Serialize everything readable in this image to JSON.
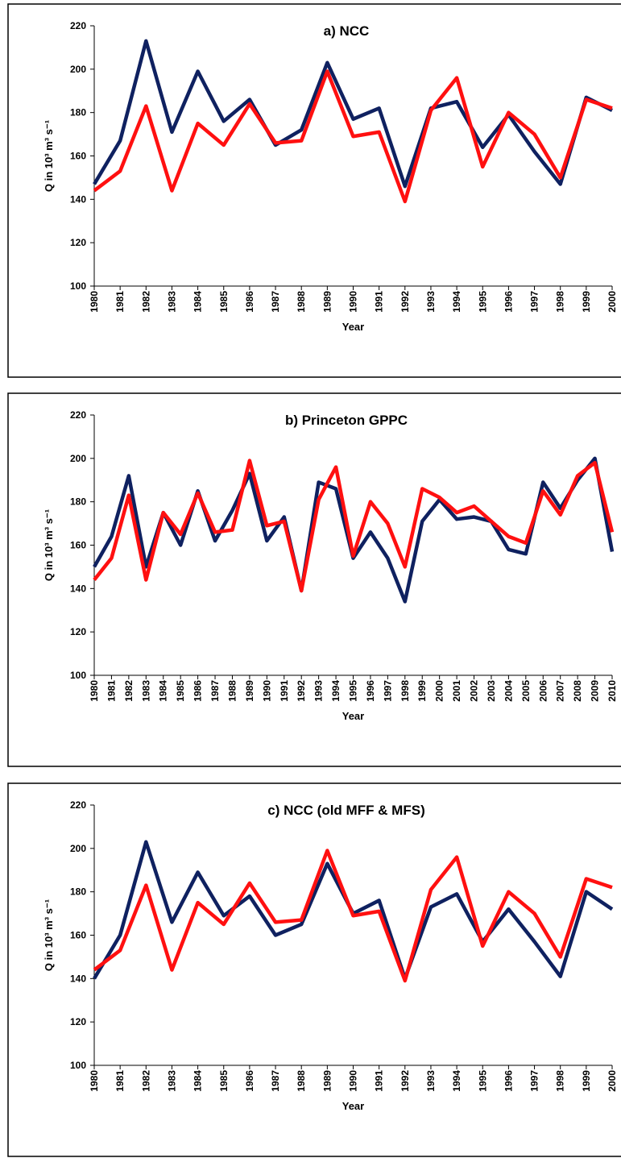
{
  "chart_data": [
    {
      "type": "line",
      "title": "a) NCC",
      "ylabel": "Q in 10³ m³ s⁻¹",
      "xlabel": "Year",
      "x": [
        1980,
        1981,
        1982,
        1983,
        1984,
        1985,
        1986,
        1987,
        1988,
        1989,
        1990,
        1991,
        1992,
        1993,
        1994,
        1995,
        1996,
        1997,
        1998,
        1999,
        2000
      ],
      "xlim": [
        1980,
        2000
      ],
      "xticks": [
        1980,
        1981,
        1982,
        1983,
        1984,
        1985,
        1986,
        1987,
        1988,
        1989,
        1990,
        1991,
        1992,
        1993,
        1994,
        1995,
        1996,
        1997,
        1998,
        1999,
        2000
      ],
      "ylim": [
        100,
        220
      ],
      "yticks": [
        100,
        120,
        140,
        160,
        180,
        200,
        220
      ],
      "series": [
        {
          "color": "#0f2160",
          "values": [
            147,
            167,
            213,
            171,
            199,
            176,
            186,
            165,
            172,
            203,
            177,
            182,
            146,
            182,
            185,
            164,
            179,
            162,
            147,
            187,
            181
          ]
        },
        {
          "color": "#ff1010",
          "values": [
            144,
            153,
            183,
            144,
            175,
            165,
            184,
            166,
            167,
            199,
            169,
            171,
            139,
            181,
            196,
            155,
            180,
            170,
            150,
            186,
            182
          ]
        }
      ]
    },
    {
      "type": "line",
      "title": "b) Princeton GPPC",
      "ylabel": "Q in 10³ m³ s⁻¹",
      "xlabel": "Year",
      "x": [
        1980,
        1981,
        1982,
        1983,
        1984,
        1985,
        1986,
        1987,
        1988,
        1989,
        1990,
        1991,
        1992,
        1993,
        1994,
        1995,
        1996,
        1997,
        1998,
        1999,
        2000,
        2001,
        2002,
        2003,
        2004,
        2005,
        2006,
        2007,
        2008,
        2009,
        2010
      ],
      "xlim": [
        1980,
        2010
      ],
      "xticks": [
        1980,
        1981,
        1982,
        1983,
        1984,
        1985,
        1986,
        1987,
        1988,
        1989,
        1990,
        1991,
        1992,
        1993,
        1994,
        1995,
        1996,
        1997,
        1998,
        1999,
        2000,
        2001,
        2002,
        2003,
        2004,
        2005,
        2006,
        2007,
        2008,
        2009,
        2010
      ],
      "ylim": [
        100,
        220
      ],
      "yticks": [
        100,
        120,
        140,
        160,
        180,
        200,
        220
      ],
      "series": [
        {
          "color": "#0f2160",
          "values": [
            150,
            164,
            192,
            150,
            175,
            160,
            185,
            162,
            176,
            193,
            162,
            173,
            139,
            189,
            186,
            154,
            166,
            154,
            134,
            171,
            181,
            172,
            173,
            171,
            158,
            156,
            189,
            177,
            190,
            200,
            157
          ]
        },
        {
          "color": "#ff1010",
          "values": [
            144,
            154,
            183,
            144,
            175,
            165,
            184,
            166,
            167,
            199,
            169,
            171,
            139,
            181,
            196,
            155,
            180,
            170,
            150,
            186,
            182,
            175,
            178,
            171,
            164,
            161,
            185,
            174,
            192,
            198,
            166
          ]
        }
      ]
    },
    {
      "type": "line",
      "title": "c) NCC (old MFF & MFS)",
      "ylabel": "Q in 10³ m³ s⁻¹",
      "xlabel": "Year",
      "x": [
        1980,
        1981,
        1982,
        1983,
        1984,
        1985,
        1986,
        1987,
        1988,
        1989,
        1990,
        1991,
        1992,
        1993,
        1994,
        1995,
        1996,
        1997,
        1998,
        1999,
        2000
      ],
      "xlim": [
        1980,
        2000
      ],
      "xticks": [
        1980,
        1981,
        1982,
        1983,
        1984,
        1985,
        1986,
        1987,
        1988,
        1989,
        1990,
        1991,
        1992,
        1993,
        1994,
        1995,
        1996,
        1997,
        1998,
        1999,
        2000
      ],
      "ylim": [
        100,
        220
      ],
      "yticks": [
        100,
        120,
        140,
        160,
        180,
        200,
        220
      ],
      "series": [
        {
          "color": "#0f2160",
          "values": [
            140,
            160,
            203,
            166,
            189,
            169,
            178,
            160,
            165,
            193,
            170,
            176,
            140,
            173,
            179,
            157,
            172,
            157,
            141,
            180,
            172
          ]
        },
        {
          "color": "#ff1010",
          "values": [
            144,
            153,
            183,
            144,
            175,
            165,
            184,
            166,
            167,
            199,
            169,
            171,
            139,
            181,
            196,
            155,
            180,
            170,
            150,
            186,
            182
          ]
        }
      ]
    }
  ]
}
